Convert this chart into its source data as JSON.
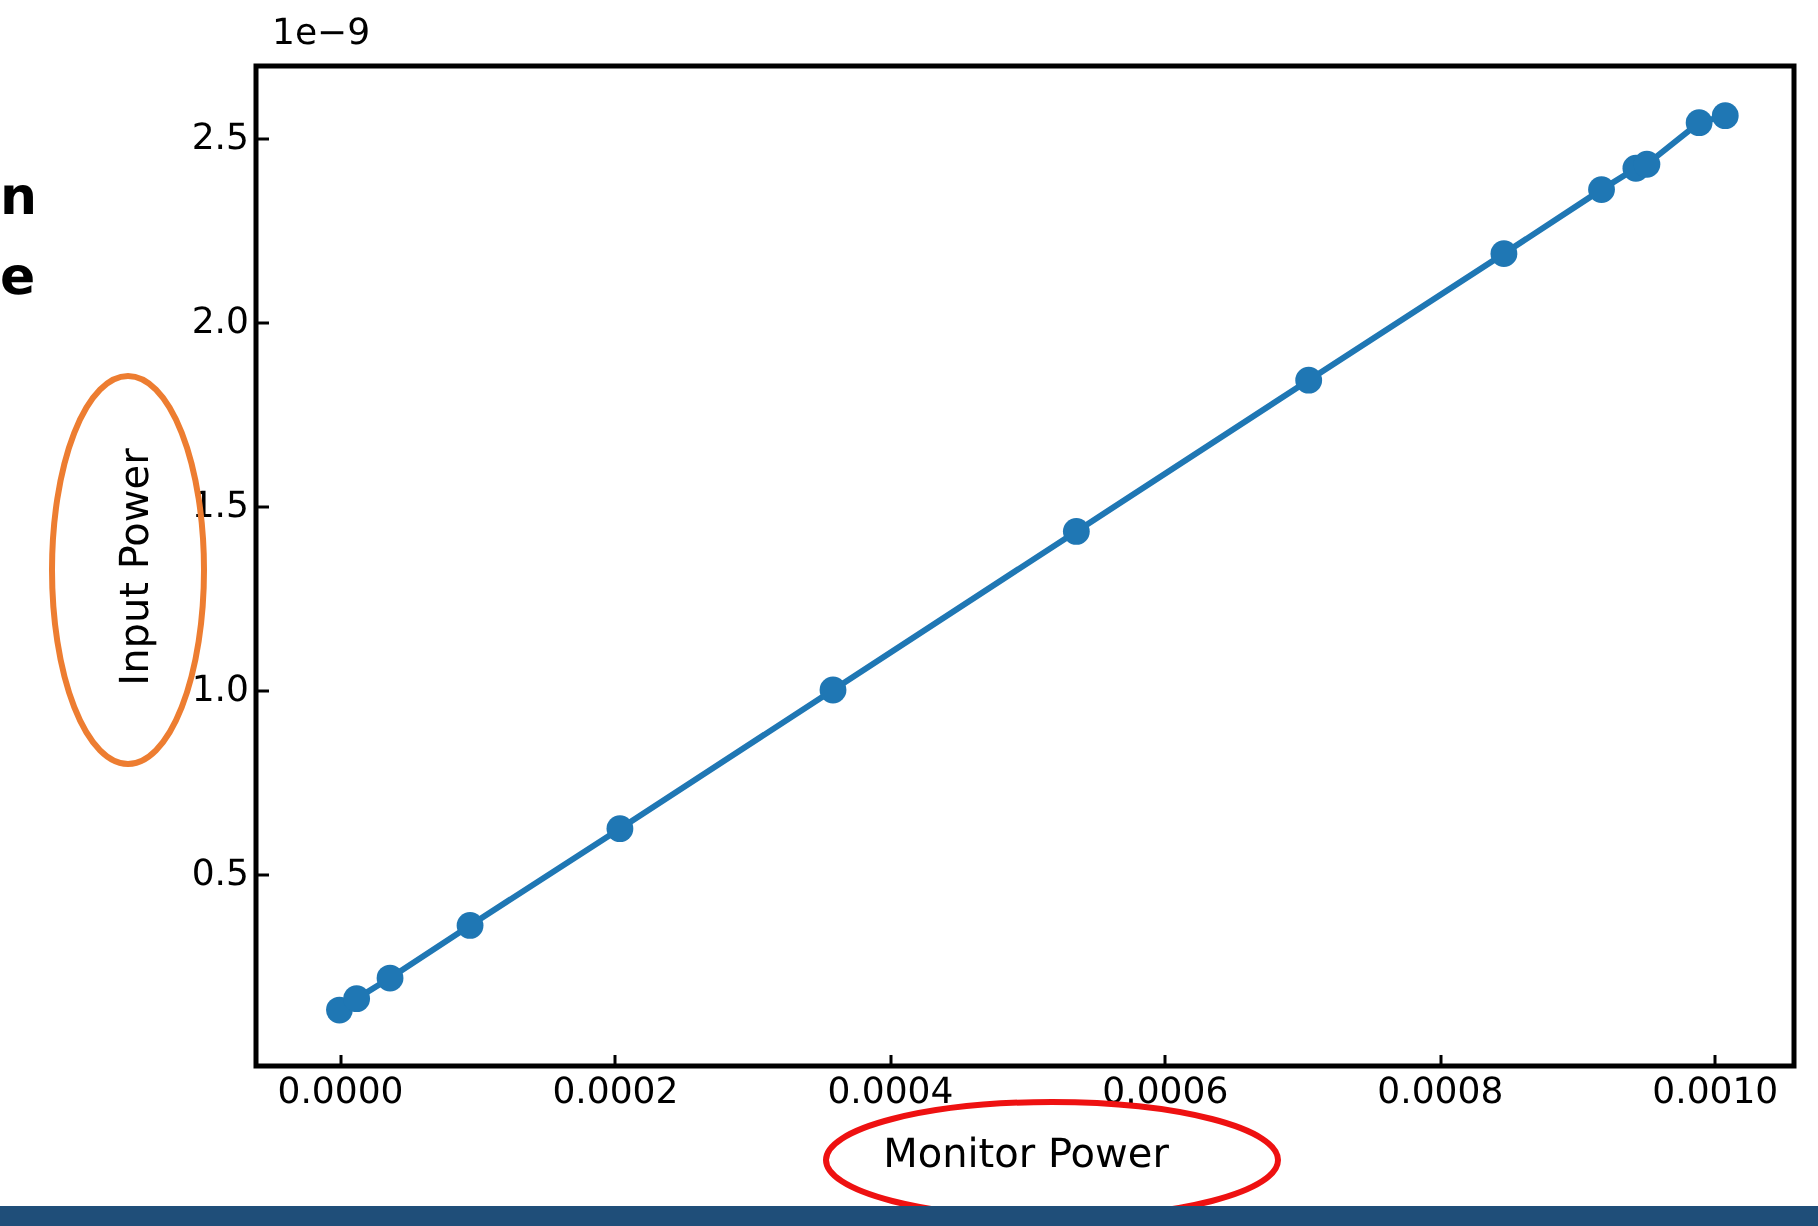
{
  "chart_data": {
    "type": "line",
    "xlabel": "Monitor Power",
    "ylabel": "Input Power",
    "annotations": [
      "1e−9",
      "n",
      "e"
    ],
    "x": [
      0,
      1.25e-05,
      3.68e-05,
      9.5e-05,
      0.000204,
      0.000359,
      0.000536,
      0.000705,
      0.000847,
      0.000918,
      0.000943,
      0.000951,
      0.000989,
      0.001008
    ],
    "series": [
      {
        "color": "#1f77b4",
        "values": [
          0.13,
          0.161,
          0.217,
          0.36,
          0.623,
          1.0,
          1.431,
          1.842,
          2.186,
          2.36,
          2.418,
          2.429,
          2.542,
          2.561
        ]
      }
    ],
    "xlim": [
      -6.07e-05,
      0.001058
    ],
    "ylim": [
      -0.022,
      2.696
    ],
    "xticks": [
      {
        "value": 0,
        "label": "0.0000"
      },
      {
        "value": 0.0002,
        "label": "0.0002"
      },
      {
        "value": 0.0004,
        "label": "0.0004"
      },
      {
        "value": 0.0006,
        "label": "0.0006"
      },
      {
        "value": 0.0008,
        "label": "0.0008"
      },
      {
        "value": 0.001,
        "label": "0.0010"
      }
    ],
    "yticks": [
      0.5,
      {
        "value": 1,
        "label": "1.0"
      },
      1.5,
      {
        "value": 2,
        "label": "2.0"
      },
      2.5
    ],
    "marker": "circle",
    "line_style": "solid"
  }
}
